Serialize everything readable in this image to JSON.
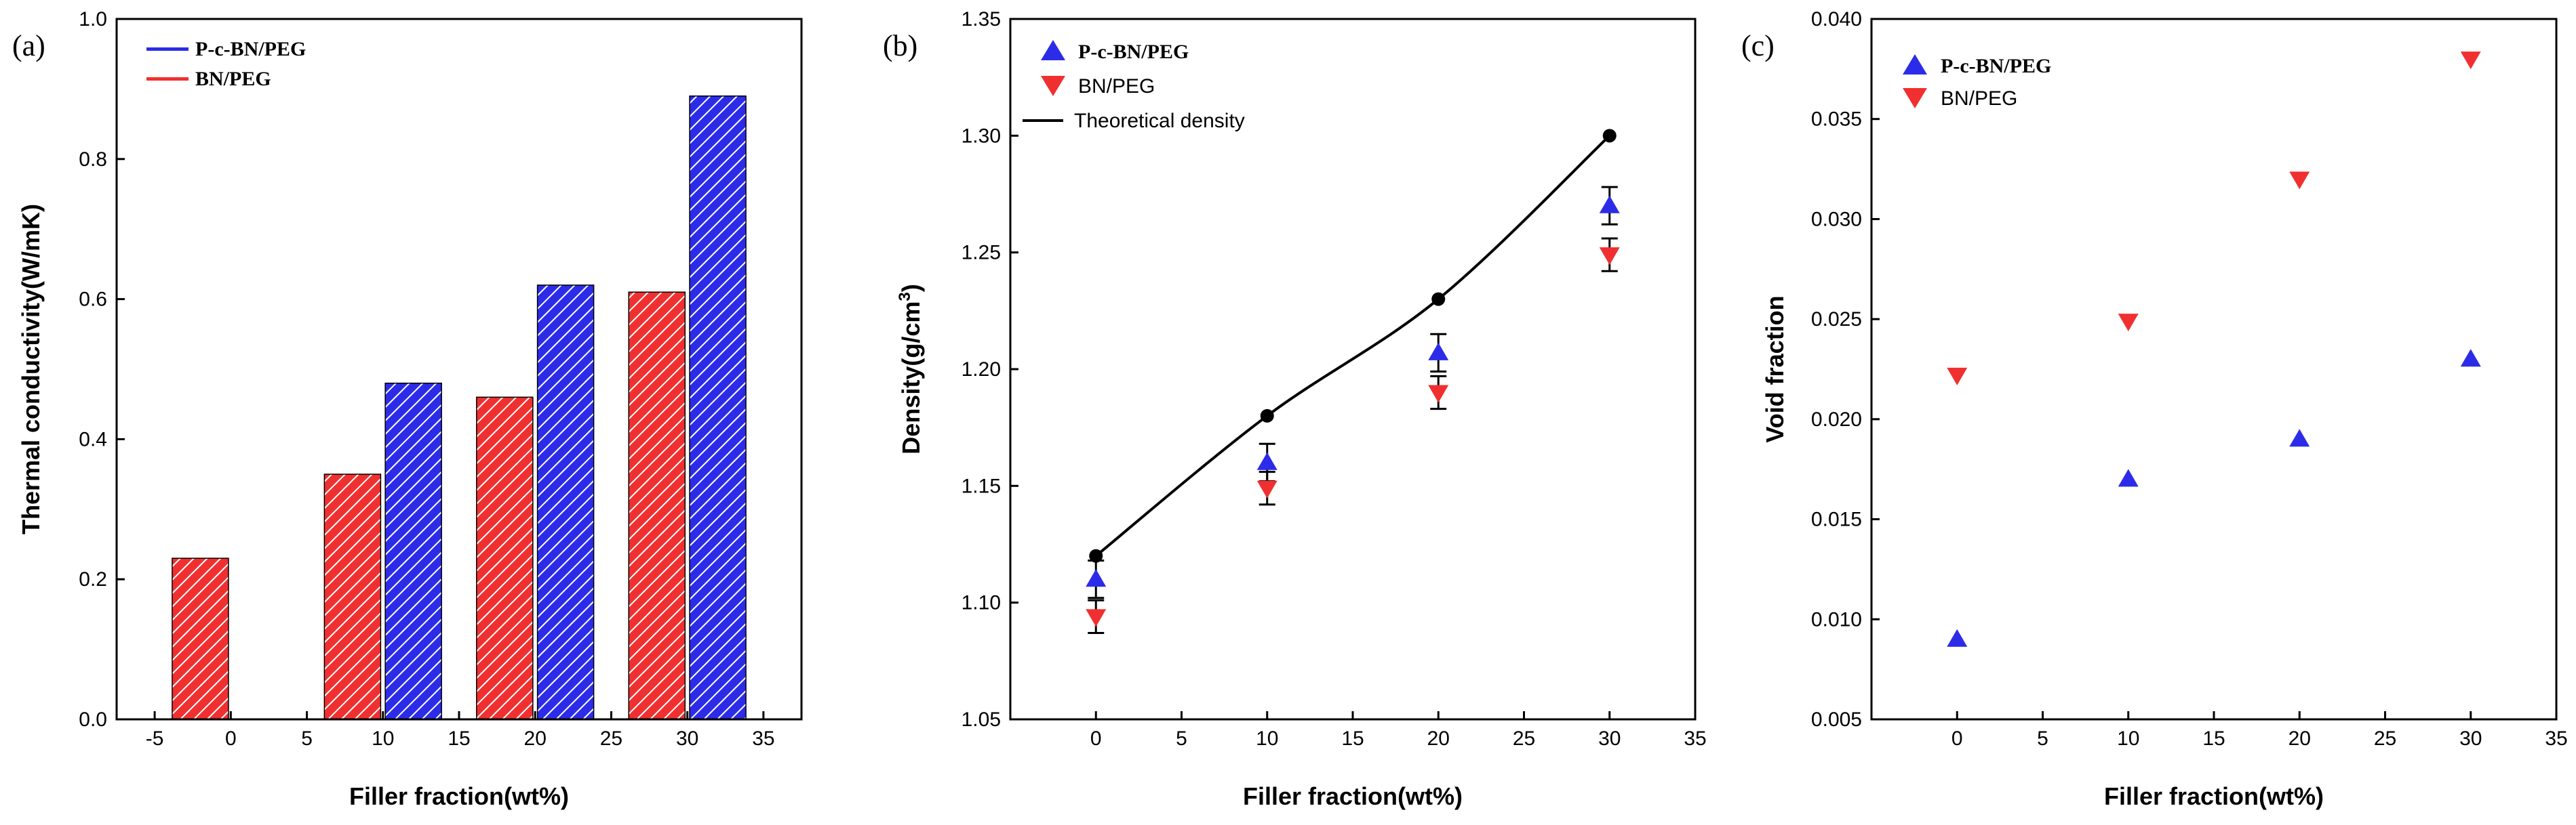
{
  "chart_data": [
    {
      "panel": "(a)",
      "type": "bar",
      "xlabel": "Filler fraction(wt%)",
      "ylabel": "Thermal conductivity(W/mK)",
      "xlim": [
        -7.5,
        37.5
      ],
      "ylim": [
        0.0,
        1.0
      ],
      "xticks": [
        -5,
        0,
        5,
        10,
        15,
        20,
        25,
        30,
        35
      ],
      "xtick_labels": [
        "-5",
        "0",
        "5",
        "10",
        "15",
        "20",
        "25",
        "30",
        "35"
      ],
      "yticks": [
        0.0,
        0.2,
        0.4,
        0.6,
        0.8,
        1.0
      ],
      "ytick_labels": [
        "0.0",
        "0.2",
        "0.4",
        "0.6",
        "0.8",
        "1.0"
      ],
      "bar_width": 3.7,
      "series": [
        {
          "name": "P-c-BN/PEG",
          "color": "#2020e0",
          "x": [
            12,
            22,
            32
          ],
          "values": [
            0.48,
            0.62,
            0.89
          ]
        },
        {
          "name": "BN/PEG",
          "color": "#f02020",
          "x": [
            -2,
            8,
            18,
            28
          ],
          "values": [
            0.23,
            0.35,
            0.46,
            0.61
          ]
        }
      ]
    },
    {
      "panel": "(b)",
      "type": "scatter",
      "xlabel": "Filler fraction(wt%)",
      "ylabel_prefix": "Density(g/cm",
      "ylabel_sup": "3",
      "ylabel_suffix": ")",
      "xlim": [
        -5,
        35
      ],
      "ylim": [
        1.05,
        1.35
      ],
      "xticks": [
        0,
        5,
        10,
        15,
        20,
        25,
        30,
        35
      ],
      "xtick_labels": [
        "0",
        "5",
        "10",
        "15",
        "20",
        "25",
        "30",
        "35"
      ],
      "yticks": [
        1.05,
        1.1,
        1.15,
        1.2,
        1.25,
        1.3,
        1.35
      ],
      "ytick_labels": [
        "1.05",
        "1.10",
        "1.15",
        "1.20",
        "1.25",
        "1.30",
        "1.35"
      ],
      "series": [
        {
          "name": "P-c-BN/PEG",
          "marker": "triangle-up",
          "color": "#2020e0",
          "x": [
            0,
            10,
            20,
            30
          ],
          "values": [
            1.11,
            1.16,
            1.207,
            1.27
          ],
          "errors": [
            0.008,
            0.008,
            0.008,
            0.008
          ]
        },
        {
          "name": "BN/PEG",
          "marker": "triangle-down",
          "color": "#f02020",
          "x": [
            0,
            10,
            20,
            30
          ],
          "values": [
            1.094,
            1.149,
            1.19,
            1.249
          ],
          "errors": [
            0.007,
            0.007,
            0.007,
            0.007
          ]
        },
        {
          "name": "Theoretical density",
          "marker": "circle-line",
          "color": "#000000",
          "x": [
            0,
            10,
            20,
            30
          ],
          "values": [
            1.12,
            1.18,
            1.23,
            1.3
          ]
        }
      ]
    },
    {
      "panel": "(c)",
      "type": "scatter",
      "xlabel": "Filler fraction(wt%)",
      "ylabel": "Void fraction",
      "xlim": [
        -5,
        35
      ],
      "ylim": [
        0.005,
        0.04
      ],
      "xticks": [
        0,
        5,
        10,
        15,
        20,
        25,
        30,
        35
      ],
      "xtick_labels": [
        "0",
        "5",
        "10",
        "15",
        "20",
        "25",
        "30",
        "35"
      ],
      "yticks": [
        0.005,
        0.01,
        0.015,
        0.02,
        0.025,
        0.03,
        0.035,
        0.04
      ],
      "ytick_labels": [
        "0.005",
        "0.010",
        "0.015",
        "0.020",
        "0.025",
        "0.030",
        "0.035",
        "0.040"
      ],
      "series": [
        {
          "name": "P-c-BN/PEG",
          "marker": "triangle-up",
          "color": "#2020e0",
          "x": [
            0,
            10,
            20,
            30
          ],
          "values": [
            0.009,
            0.017,
            0.019,
            0.023
          ]
        },
        {
          "name": "BN/PEG",
          "marker": "triangle-down",
          "color": "#f02020",
          "x": [
            0,
            10,
            20,
            30
          ],
          "values": [
            0.0222,
            0.0249,
            0.032,
            0.038
          ]
        }
      ]
    }
  ]
}
